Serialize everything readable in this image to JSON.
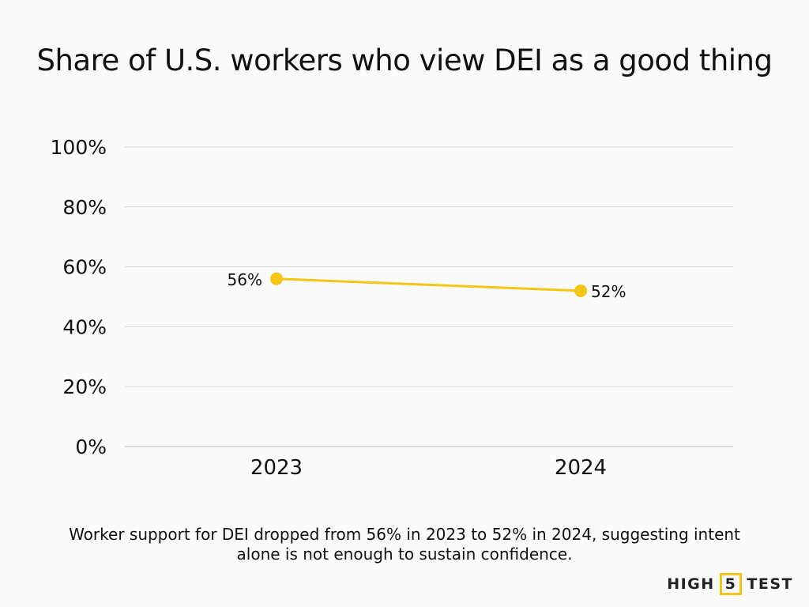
{
  "chart_data": {
    "type": "line",
    "title": "Share of U.S. workers who view DEI as a good thing",
    "categories": [
      "2023",
      "2024"
    ],
    "values": [
      56,
      52
    ],
    "data_labels": [
      "56%",
      "52%"
    ],
    "ylim": [
      0,
      100
    ],
    "yticks": [
      0,
      20,
      40,
      60,
      80,
      100
    ],
    "ytick_labels": [
      "0%",
      "20%",
      "40%",
      "60%",
      "80%",
      "100%"
    ],
    "grid": true,
    "line_color": "#f5c518",
    "xlabel": "",
    "ylabel": ""
  },
  "caption": "Worker support for DEI dropped from 56% in 2023 to 52% in 2024, suggesting intent alone is not enough to sustain confidence.",
  "logo": {
    "left": "HIGH",
    "mid": "5",
    "right": "TEST",
    "accent": "#f5c518"
  }
}
